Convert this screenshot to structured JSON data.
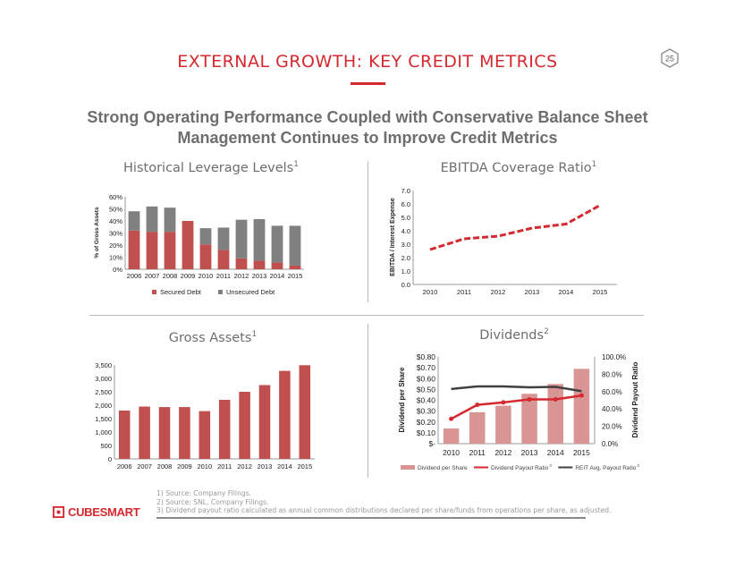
{
  "header": {
    "title": "EXTERNAL GROWTH: KEY CREDIT METRICS",
    "page_number": "25"
  },
  "subtitle": {
    "line1": "Strong Operating Performance Coupled with Conservative Balance Sheet",
    "line2": "Management Continues to Improve Credit Metrics"
  },
  "quadrants": {
    "leverage": {
      "title": "Historical Leverage Levels",
      "sup": "1"
    },
    "ebitda": {
      "title": "EBITDA Coverage Ratio",
      "sup": "1"
    },
    "gross": {
      "title": "Gross Assets",
      "sup": "1"
    },
    "dividends": {
      "title": "Dividends",
      "sup": "2"
    }
  },
  "colors": {
    "accent": "#d6282f",
    "bar_red": "#c0504d",
    "bar_gray": "#808080",
    "dividend_bar": "#d99594",
    "reit_line": "#404040"
  },
  "chart_data": [
    {
      "type": "bar",
      "stacked": true,
      "ylabel": "% of Gross Assets",
      "ylim": [
        0,
        60
      ],
      "yticks": [
        "0%",
        "10%",
        "20%",
        "30%",
        "40%",
        "50%",
        "60%"
      ],
      "categories": [
        "2006",
        "2007",
        "2008",
        "2009",
        "2010",
        "2011",
        "2012",
        "2013",
        "2014",
        "2015"
      ],
      "series": [
        {
          "name": "Secured Debt",
          "values": [
            32,
            31,
            31,
            40,
            20.5,
            16,
            9,
            7,
            5.5,
            3
          ]
        },
        {
          "name": "Unsecured Debt",
          "values": [
            16,
            21,
            20,
            0,
            13.5,
            18.5,
            32,
            34.5,
            30.5,
            33
          ]
        }
      ],
      "legend": "bottom"
    },
    {
      "type": "line",
      "ylabel": "EBITDA / Interest Expense",
      "ylim": [
        0,
        7
      ],
      "yticks": [
        "0.0",
        "1.0",
        "2.0",
        "3.0",
        "4.0",
        "5.0",
        "6.0",
        "7.0"
      ],
      "categories": [
        "2010",
        "2011",
        "2012",
        "2013",
        "2014",
        "2015"
      ],
      "values": [
        2.6,
        3.4,
        3.6,
        4.2,
        4.5,
        5.9
      ],
      "line_style": "dashed"
    },
    {
      "type": "bar",
      "ylim": [
        0,
        3500
      ],
      "yticks": [
        "0",
        "500",
        "1,000",
        "1,500",
        "2,000",
        "2,500",
        "3,000",
        "3,500"
      ],
      "categories": [
        "2006",
        "2007",
        "2008",
        "2009",
        "2010",
        "2011",
        "2012",
        "2013",
        "2014",
        "2015"
      ],
      "values": [
        1800,
        1950,
        1930,
        1930,
        1780,
        2200,
        2500,
        2750,
        3280,
        3490
      ]
    },
    {
      "type": "bar",
      "ylabel": "Dividend per Share",
      "y2label": "Dividend Payout Ratio",
      "ylim": [
        0,
        0.8
      ],
      "y2lim": [
        0,
        100
      ],
      "yticks": [
        "$-",
        "$0.10",
        "$0.20",
        "$0.30",
        "$0.40",
        "$0.50",
        "$0.60",
        "$0.70",
        "$0.80"
      ],
      "y2ticks": [
        "0.0%",
        "20.0%",
        "40.0%",
        "60.0%",
        "80.0%",
        "100.0%"
      ],
      "categories": [
        "2010",
        "2011",
        "2012",
        "2013",
        "2014",
        "2015"
      ],
      "series": [
        {
          "name": "Dividend per Share",
          "type": "bar",
          "values": [
            0.14,
            0.29,
            0.35,
            0.46,
            0.55,
            0.69
          ]
        },
        {
          "name": "Dividend Payout Ratio",
          "sup": "3",
          "type": "line",
          "axis": "right",
          "values": [
            28.6,
            44.7,
            47.6,
            51,
            51,
            55.5
          ]
        },
        {
          "name": "REIT Avg. Payout Ratio",
          "sup": "3",
          "type": "line",
          "axis": "right",
          "values": [
            63,
            66,
            66,
            65,
            65.5,
            60.5
          ]
        }
      ],
      "legend": "bottom"
    }
  ],
  "footer": {
    "notes": [
      "1) Source: Company Filings.",
      "2) Source: SNL, Company Filings.",
      "3) Dividend payout ratio calculated as annual common distributions declared per share/funds from operations per share, as adjusted."
    ],
    "logo": "CUBESMART"
  }
}
